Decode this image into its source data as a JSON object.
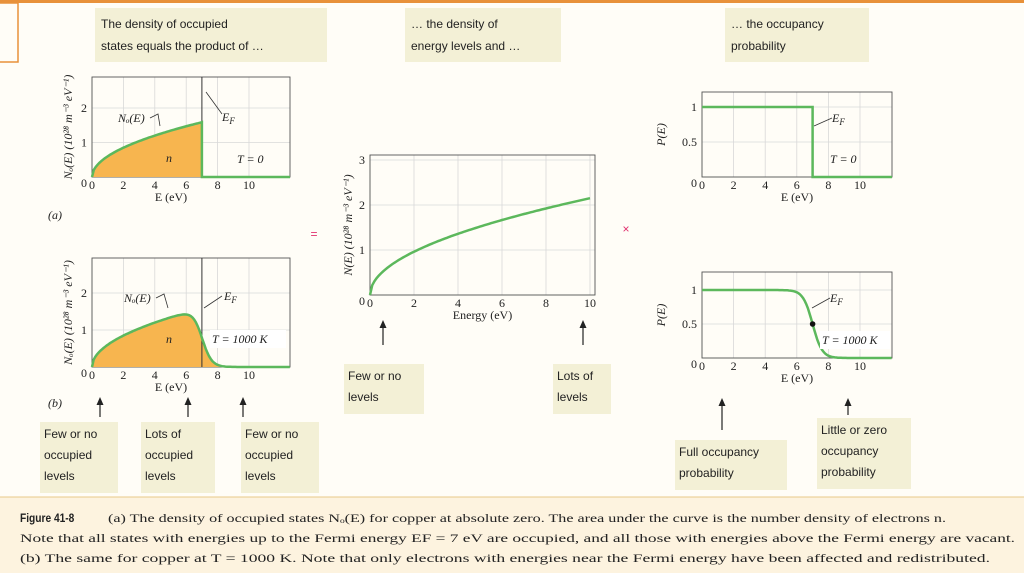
{
  "headings": [
    [
      "The density of occupied",
      "states equals the product of …"
    ],
    [
      "… the density of",
      "energy levels and …"
    ],
    [
      "… the occupancy",
      "probability"
    ]
  ],
  "panel_labels": [
    "(a)",
    "(b)"
  ],
  "occupied_plots": {
    "y_label": "Nₒ(E) (10²⁸ m⁻³ eV⁻¹)",
    "x_label": "E (eV)",
    "xticks": [
      0,
      2,
      4,
      6,
      8,
      10
    ],
    "yticks": [
      0,
      1,
      2
    ],
    "curve_label": "Nₒ(E)",
    "fermi_label": {
      "main": "E",
      "sub": "F"
    },
    "area_label": "n",
    "temperatures": [
      "T = 0",
      "T = 1000 K"
    ]
  },
  "density_plot": {
    "y_label": "N(E) (10²⁸ m⁻³ eV⁻¹)",
    "x_label": "Energy (eV)",
    "xticks": [
      0,
      2,
      4,
      6,
      8,
      10
    ],
    "yticks": [
      0,
      1,
      2,
      3
    ]
  },
  "occupancy_plots": {
    "y_label": "P(E)",
    "x_label": "E (eV)",
    "xticks": [
      0,
      2,
      4,
      6,
      8,
      10
    ],
    "yticks": [
      0,
      0.5,
      1
    ],
    "fermi_label": {
      "main": "E",
      "sub": "F"
    },
    "temperatures": [
      "T = 0",
      "T = 1000 K"
    ]
  },
  "operators": [
    "=",
    "×"
  ],
  "notes": {
    "occupied": [
      [
        "Few or no",
        "occupied",
        "levels"
      ],
      [
        "Lots of",
        "occupied",
        "levels"
      ],
      [
        "Few or no",
        "occupied",
        "levels"
      ]
    ],
    "density": [
      [
        "Few or no",
        "levels"
      ],
      [
        "Lots of",
        "levels"
      ]
    ],
    "occupancy": [
      [
        "Full occupancy",
        "probability"
      ],
      [
        "Little or zero",
        "occupancy",
        "probability"
      ]
    ]
  },
  "caption": {
    "label": "Figure 41-8",
    "lines": [
      "(a) The density of occupied states Nₒ(E) for copper at absolute zero. The area under the curve is the number density of electrons n.",
      "Note that all states with energies up to the Fermi energy EF = 7 eV are occupied, and all those with energies above the Fermi energy are vacant.",
      "(b) The same for copper at T = 1000 K. Note that only electrons with energies near the Fermi energy have been affected and redistributed."
    ]
  }
}
